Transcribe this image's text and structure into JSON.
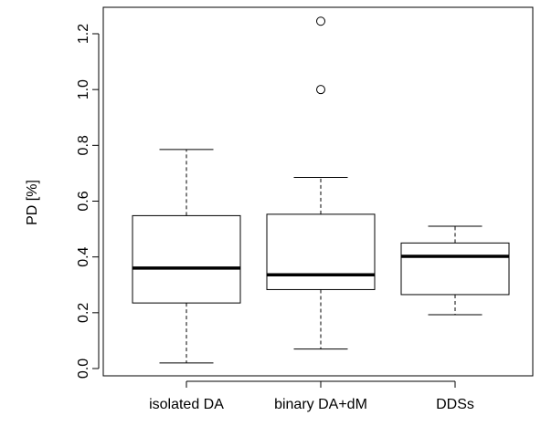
{
  "chart_data": {
    "type": "boxplot",
    "title": "",
    "xlabel": "",
    "ylabel": "PD [%]",
    "ylim": [
      -0.03,
      1.28
    ],
    "yticks": [
      0.0,
      0.2,
      0.4,
      0.6,
      0.8,
      1.0,
      1.2
    ],
    "ytick_labels": [
      "0.0",
      "0.2",
      "0.4",
      "0.6",
      "0.8",
      "1.0",
      "1.2"
    ],
    "categories": [
      "isolated DA",
      "binary DA+dM",
      "DDSs"
    ],
    "boxes": [
      {
        "label": "isolated DA",
        "whisker_low": 0.02,
        "q1": 0.235,
        "median": 0.36,
        "q3": 0.548,
        "whisker_high": 0.785,
        "outliers": []
      },
      {
        "label": "binary DA+dM",
        "whisker_low": 0.07,
        "q1": 0.283,
        "median": 0.336,
        "q3": 0.553,
        "whisker_high": 0.685,
        "outliers": [
          1.0,
          1.245
        ]
      },
      {
        "label": "DDSs",
        "whisker_low": 0.193,
        "q1": 0.265,
        "median": 0.402,
        "q3": 0.45,
        "whisker_high": 0.51,
        "outliers": []
      }
    ],
    "grid": false,
    "legend": "none"
  }
}
